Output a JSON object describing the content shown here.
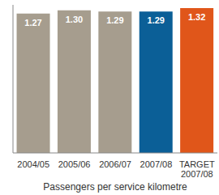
{
  "chart_data": {
    "type": "bar",
    "x_label": "Passengers per service kilometre",
    "categories": [
      "2004/05",
      "2005/06",
      "2006/07",
      "2007/08",
      "TARGET 2007/08"
    ],
    "values": [
      1.27,
      1.3,
      1.29,
      1.29,
      1.32
    ],
    "value_labels": [
      "1.27",
      "1.30",
      "1.29",
      "1.29",
      "1.32"
    ],
    "colors": [
      "#a69d8e",
      "#a69d8e",
      "#a69d8e",
      "#0b5f97",
      "#e0561a"
    ],
    "ylim": [
      0,
      1.35
    ],
    "data_labels": true,
    "tick_labels": "x",
    "grid": false
  }
}
